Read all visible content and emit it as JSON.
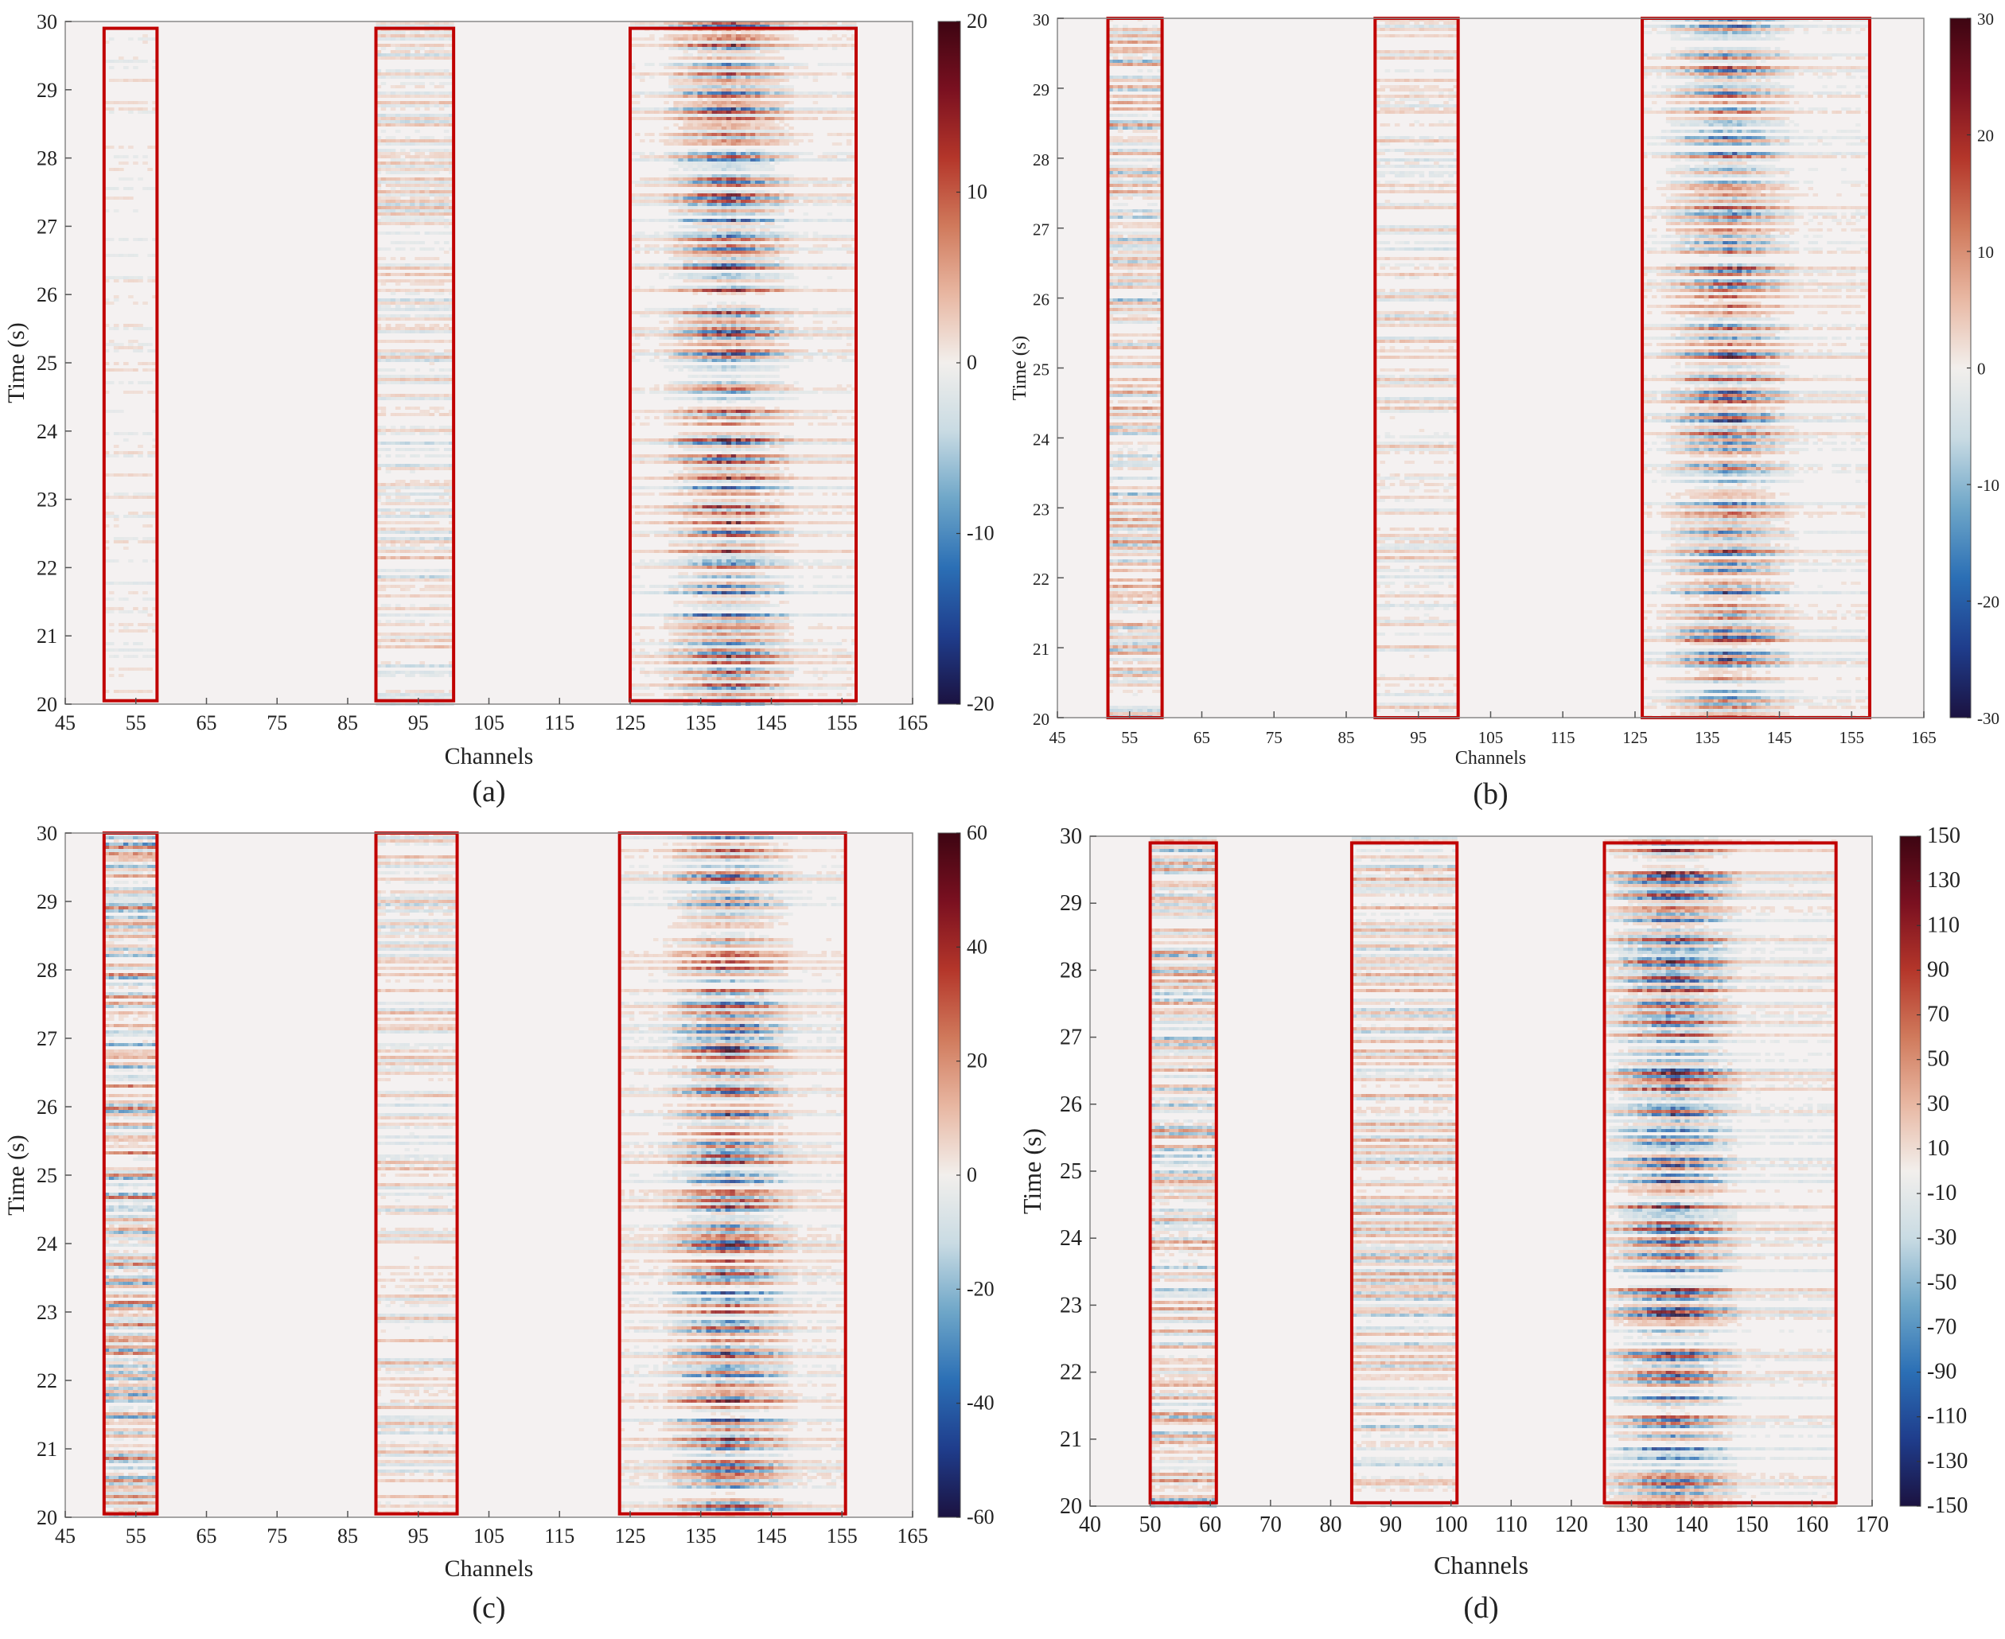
{
  "colors": {
    "roi_box": "#c00000",
    "frame": "#888888",
    "background": "#f4f1f1",
    "colormap": [
      "#1b1240",
      "#1f3d8c",
      "#2b6fb5",
      "#6ea6c8",
      "#c9dbe3",
      "#f2efec",
      "#e8b7a2",
      "#d07a5c",
      "#b4362a",
      "#7a1020",
      "#3d0512"
    ]
  },
  "chart_data": [
    {
      "id": "a",
      "type": "heatmap",
      "panel_label": "(a)",
      "xlabel": "Channels",
      "ylabel": "Time (s)",
      "xlim": [
        45,
        165
      ],
      "ylim": [
        20,
        30
      ],
      "xticks": [
        "45",
        "55",
        "65",
        "75",
        "85",
        "95",
        "105",
        "115",
        "125",
        "135",
        "145",
        "155",
        "165"
      ],
      "yticks": [
        "20",
        "21",
        "22",
        "23",
        "24",
        "25",
        "26",
        "27",
        "28",
        "29",
        "30"
      ],
      "colorbar": {
        "range": [
          -20,
          20
        ],
        "ticks": [
          "-20",
          "-10",
          "0",
          "10",
          "20"
        ]
      },
      "highlight_regions": [
        {
          "channels": [
            50.5,
            58
          ],
          "time": [
            20.05,
            29.9
          ],
          "amplitude": 0.15
        },
        {
          "channels": [
            89,
            100
          ],
          "time": [
            20.05,
            29.9
          ],
          "amplitude": 0.35
        },
        {
          "channels": [
            125,
            157
          ],
          "time": [
            20.05,
            29.9
          ],
          "amplitude": 0.9,
          "peak_channel": 139
        }
      ]
    },
    {
      "id": "b",
      "type": "heatmap",
      "panel_label": "(b)",
      "xlabel": "Channels",
      "ylabel": "Time (s)",
      "xlim": [
        45,
        165
      ],
      "ylim": [
        20,
        30
      ],
      "xticks": [
        "45",
        "55",
        "65",
        "75",
        "85",
        "95",
        "105",
        "115",
        "125",
        "135",
        "145",
        "155",
        "165"
      ],
      "yticks": [
        "20",
        "21",
        "22",
        "23",
        "24",
        "25",
        "26",
        "27",
        "28",
        "29",
        "30"
      ],
      "colorbar": {
        "range": [
          -30,
          30
        ],
        "ticks": [
          "-30",
          "-20",
          "-10",
          "0",
          "10",
          "20",
          "30"
        ]
      },
      "highlight_regions": [
        {
          "channels": [
            52,
            59.5
          ],
          "time": [
            20,
            30
          ],
          "amplitude": 0.55
        },
        {
          "channels": [
            89,
            100.5
          ],
          "time": [
            20,
            30
          ],
          "amplitude": 0.3
        },
        {
          "channels": [
            126,
            157.5
          ],
          "time": [
            20,
            30
          ],
          "amplitude": 0.85,
          "peak_channel": 138
        }
      ]
    },
    {
      "id": "c",
      "type": "heatmap",
      "panel_label": "(c)",
      "xlabel": "Channels",
      "ylabel": "Time (s)",
      "xlim": [
        45,
        165
      ],
      "ylim": [
        20,
        30
      ],
      "xticks": [
        "45",
        "55",
        "65",
        "75",
        "85",
        "95",
        "105",
        "115",
        "125",
        "135",
        "145",
        "155",
        "165"
      ],
      "yticks": [
        "20",
        "21",
        "22",
        "23",
        "24",
        "25",
        "26",
        "27",
        "28",
        "29",
        "30"
      ],
      "colorbar": {
        "range": [
          -60,
          60
        ],
        "ticks": [
          "-60",
          "-40",
          "-20",
          "0",
          "20",
          "40",
          "60"
        ]
      },
      "highlight_regions": [
        {
          "channels": [
            50.5,
            58
          ],
          "time": [
            20.05,
            30
          ],
          "amplitude": 0.8
        },
        {
          "channels": [
            89,
            100.5
          ],
          "time": [
            20.05,
            30
          ],
          "amplitude": 0.35
        },
        {
          "channels": [
            123.5,
            155.5
          ],
          "time": [
            20.05,
            30
          ],
          "amplitude": 0.85,
          "peak_channel": 139
        }
      ]
    },
    {
      "id": "d",
      "type": "heatmap",
      "panel_label": "(d)",
      "xlabel": "Channels",
      "ylabel": "Time (s)",
      "xlim": [
        40,
        170
      ],
      "ylim": [
        20,
        30
      ],
      "xticks": [
        "40",
        "50",
        "60",
        "70",
        "80",
        "90",
        "100",
        "110",
        "120",
        "130",
        "140",
        "150",
        "160",
        "170"
      ],
      "yticks": [
        "20",
        "21",
        "22",
        "23",
        "24",
        "25",
        "26",
        "27",
        "28",
        "29",
        "30"
      ],
      "colorbar": {
        "range": [
          -150,
          150
        ],
        "ticks": [
          "-150",
          "-130",
          "-110",
          "-90",
          "-70",
          "-50",
          "-30",
          "-10",
          "10",
          "30",
          "50",
          "70",
          "90",
          "110",
          "130",
          "150"
        ]
      },
      "highlight_regions": [
        {
          "channels": [
            50,
            61
          ],
          "time": [
            20.05,
            29.9
          ],
          "amplitude": 0.6
        },
        {
          "channels": [
            83.5,
            101
          ],
          "time": [
            20.05,
            29.9
          ],
          "amplitude": 0.5
        },
        {
          "channels": [
            125.5,
            164
          ],
          "time": [
            20.05,
            29.9
          ],
          "amplitude": 0.95,
          "peak_channel": 137
        }
      ]
    }
  ]
}
